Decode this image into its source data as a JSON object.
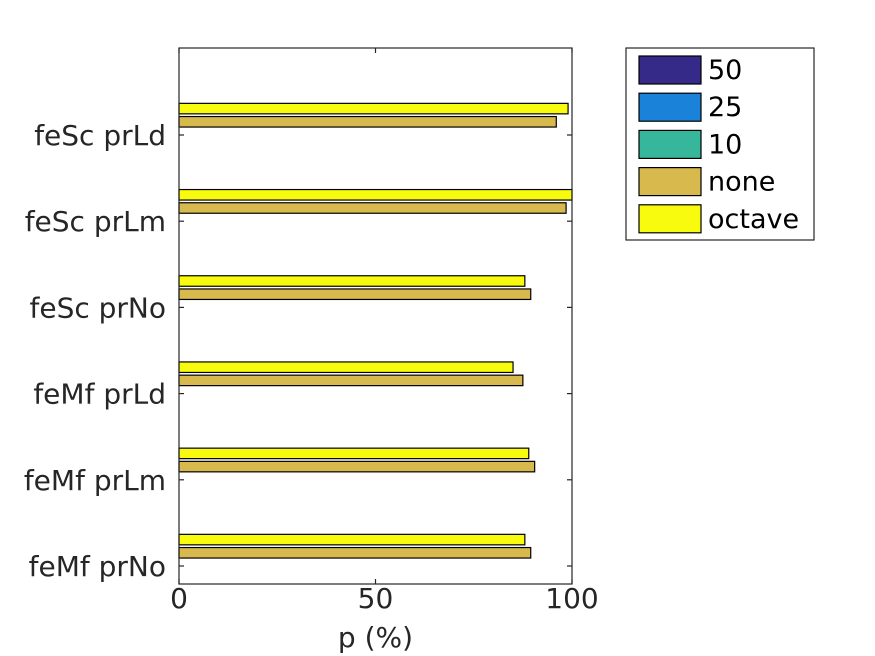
{
  "chart_data": {
    "type": "bar",
    "orientation": "horizontal",
    "categories": [
      "feSc prLd",
      "feSc prLm",
      "feSc prNo",
      "feMf prLd",
      "feMf prLm",
      "feMf prNo"
    ],
    "series": [
      {
        "name": "50",
        "color": "#352a87",
        "values": [
          null,
          null,
          null,
          null,
          null,
          null
        ]
      },
      {
        "name": "25",
        "color": "#1a82d8",
        "values": [
          null,
          null,
          null,
          null,
          null,
          null
        ]
      },
      {
        "name": "10",
        "color": "#36b79b",
        "values": [
          null,
          null,
          null,
          null,
          null,
          null
        ]
      },
      {
        "name": "none",
        "color": "#d8b94e",
        "values": [
          96,
          98.5,
          89.5,
          87.5,
          90.5,
          89.5
        ]
      },
      {
        "name": "octave",
        "color": "#f9fb0e",
        "values": [
          99,
          100,
          88,
          85,
          89,
          88
        ]
      }
    ],
    "xlabel": "p (%)",
    "ylabel": "",
    "xlim": [
      0,
      100
    ],
    "xticks": [
      "0",
      "50",
      "100"
    ],
    "grid": false,
    "legend_position": "outside-top-right"
  }
}
